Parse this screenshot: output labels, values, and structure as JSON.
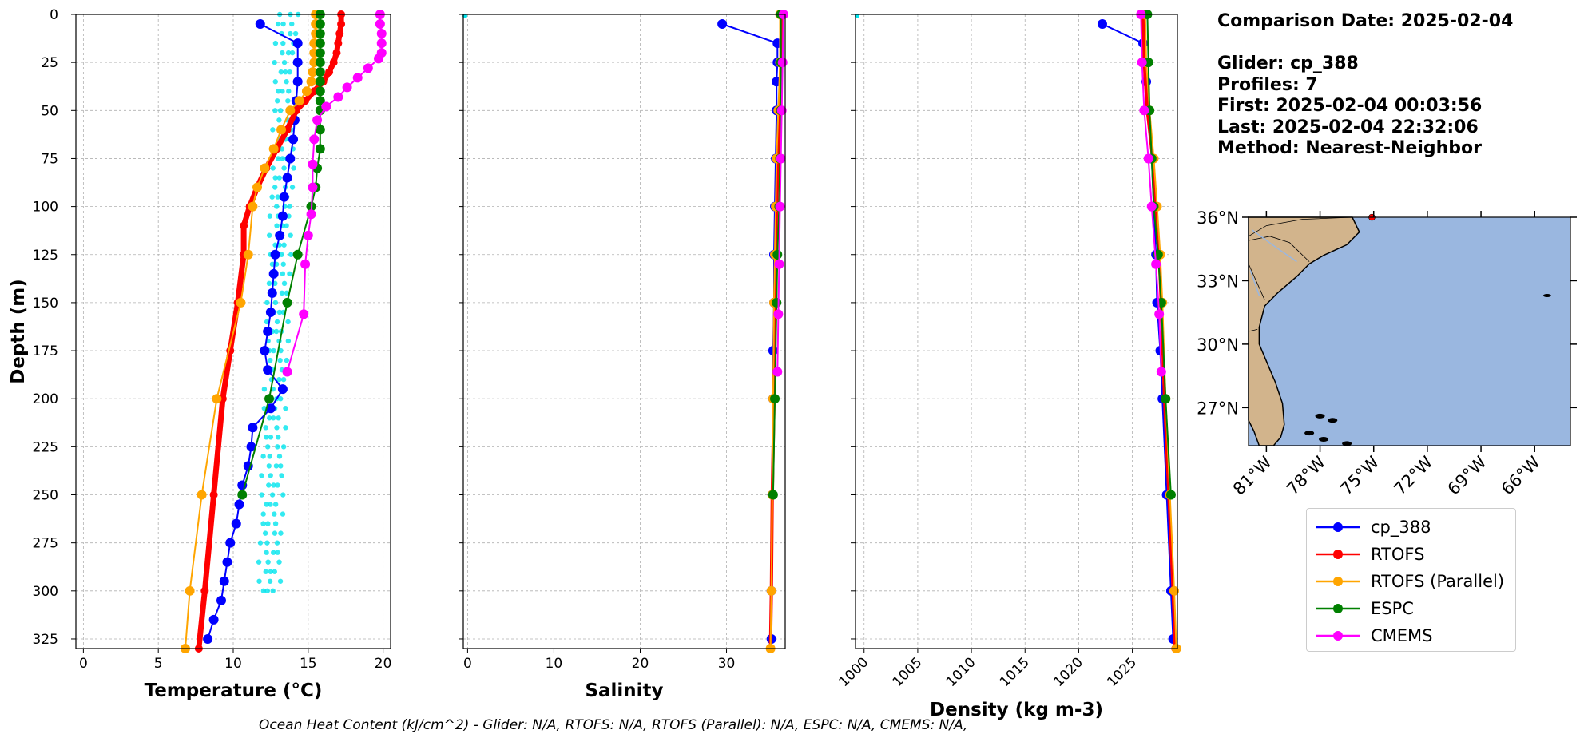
{
  "info": {
    "comparison_date": "Comparison Date: 2025-02-04",
    "glider": "Glider: cp_388",
    "profiles": "Profiles: 7",
    "first": "First: 2025-02-04 00:03:56",
    "last": "Last: 2025-02-04 22:32:06",
    "method": "Method: Nearest-Neighbor"
  },
  "footer": {
    "text": "Ocean Heat Content (kJ/cm^2) - Glider: N/A,  RTOFS: N/A,  RTOFS (Parallel): N/A,  ESPC: N/A,  CMEMS: N/A,"
  },
  "legend": [
    {
      "name": "cp_388",
      "color": "#0000ff"
    },
    {
      "name": "RTOFS",
      "color": "#ff0000"
    },
    {
      "name": "RTOFS (Parallel)",
      "color": "#ffa500"
    },
    {
      "name": "ESPC",
      "color": "#008000"
    },
    {
      "name": "CMEMS",
      "color": "#ff00ff"
    }
  ],
  "colors": {
    "glider": "#0000ff",
    "rtofs": "#ff0000",
    "rtofs_parallel": "#ffa500",
    "espc": "#008000",
    "cmems": "#ff00ff",
    "glider_casts": "#00e5ee",
    "land": "#d2b48c",
    "ocean": "#9ab7e0"
  },
  "chart_data": [
    {
      "type": "line",
      "xlabel": "Temperature (°C)",
      "ylabel": "Depth (m)",
      "xlim": [
        -0.5,
        20.5
      ],
      "ylim": [
        330,
        0
      ],
      "xticks": [
        0,
        5,
        10,
        15,
        20
      ],
      "yticks": [
        0,
        25,
        50,
        75,
        100,
        125,
        150,
        175,
        200,
        225,
        250,
        275,
        300,
        325
      ],
      "grid": true,
      "series": [
        {
          "name": "cp_388",
          "depth": [
            5,
            15,
            25,
            35,
            45,
            55,
            65,
            75,
            85,
            95,
            105,
            115,
            125,
            135,
            145,
            155,
            165,
            175,
            185,
            195,
            205,
            215,
            225,
            235,
            245,
            255,
            265,
            275,
            285,
            295,
            305,
            315,
            325
          ],
          "values": [
            11.8,
            14.3,
            14.3,
            14.3,
            14.2,
            14.1,
            14.0,
            13.8,
            13.6,
            13.4,
            13.3,
            13.1,
            12.8,
            12.7,
            12.6,
            12.5,
            12.3,
            12.1,
            12.3,
            13.3,
            12.5,
            11.3,
            11.2,
            11.0,
            10.6,
            10.4,
            10.2,
            9.8,
            9.6,
            9.4,
            9.2,
            8.7,
            8.3
          ]
        },
        {
          "name": "RTOFS",
          "depth": [
            0,
            5,
            10,
            15,
            20,
            25,
            30,
            35,
            40,
            45,
            50,
            60,
            70,
            80,
            90,
            100,
            110,
            125,
            150,
            175,
            200,
            250,
            300,
            330
          ],
          "values": [
            17.2,
            17.2,
            17.1,
            17.0,
            16.9,
            16.7,
            16.4,
            16.0,
            15.4,
            14.8,
            14.2,
            13.6,
            12.9,
            12.2,
            11.6,
            11.1,
            10.7,
            10.7,
            10.3,
            9.8,
            9.3,
            8.7,
            8.1,
            7.7
          ]
        },
        {
          "name": "RTOFS (Parallel)",
          "depth": [
            0,
            5,
            10,
            15,
            20,
            25,
            30,
            35,
            40,
            45,
            50,
            60,
            70,
            80,
            90,
            100,
            125,
            150,
            200,
            250,
            300,
            330
          ],
          "values": [
            15.5,
            15.5,
            15.5,
            15.4,
            15.4,
            15.4,
            15.3,
            15.2,
            14.9,
            14.4,
            13.8,
            13.2,
            12.7,
            12.1,
            11.6,
            11.3,
            11.0,
            10.5,
            8.9,
            7.9,
            7.1,
            6.8
          ]
        },
        {
          "name": "ESPC",
          "depth": [
            0,
            5,
            10,
            15,
            20,
            25,
            30,
            35,
            40,
            45,
            50,
            60,
            70,
            80,
            90,
            100,
            125,
            150,
            200,
            250
          ],
          "values": [
            15.8,
            15.8,
            15.8,
            15.8,
            15.8,
            15.8,
            15.8,
            15.8,
            15.8,
            15.8,
            15.8,
            15.8,
            15.8,
            15.6,
            15.5,
            15.2,
            14.3,
            13.6,
            12.4,
            10.6
          ]
        },
        {
          "name": "CMEMS",
          "depth": [
            0,
            5,
            10,
            15,
            20,
            23,
            28,
            33,
            38,
            43,
            48,
            55,
            65,
            78,
            90,
            104,
            115,
            130,
            156,
            186
          ],
          "values": [
            19.8,
            19.8,
            19.9,
            19.9,
            19.9,
            19.7,
            19.0,
            18.3,
            17.6,
            17.0,
            16.2,
            15.6,
            15.4,
            15.3,
            15.3,
            15.2,
            15.0,
            14.8,
            14.7,
            13.6
          ]
        }
      ]
    },
    {
      "type": "line",
      "xlabel": "Salinity",
      "xlim": [
        -0.5,
        36.8
      ],
      "ylim": [
        330,
        0
      ],
      "xticks": [
        0,
        10,
        20,
        30
      ],
      "grid": true,
      "series": [
        {
          "name": "cp_388",
          "depth": [
            5,
            15,
            25,
            35,
            50,
            75,
            100,
            125,
            150,
            175,
            200,
            250,
            300,
            325
          ],
          "values": [
            29.5,
            35.9,
            35.9,
            35.8,
            35.8,
            35.7,
            35.6,
            35.5,
            35.5,
            35.4,
            35.4,
            35.3,
            35.2,
            35.2
          ]
        },
        {
          "name": "RTOFS",
          "depth": [
            0,
            25,
            50,
            75,
            100,
            125,
            150,
            200,
            250,
            300,
            330
          ],
          "values": [
            36.4,
            36.3,
            36.2,
            36.0,
            35.8,
            35.7,
            35.6,
            35.5,
            35.3,
            35.2,
            35.1
          ]
        },
        {
          "name": "RTOFS (Parallel)",
          "depth": [
            0,
            25,
            50,
            75,
            100,
            125,
            150,
            200,
            250,
            300,
            330
          ],
          "values": [
            36.2,
            36.2,
            36.0,
            35.8,
            35.7,
            35.6,
            35.5,
            35.4,
            35.3,
            35.2,
            35.1
          ]
        },
        {
          "name": "ESPC",
          "depth": [
            0,
            25,
            50,
            75,
            100,
            125,
            150,
            200,
            250
          ],
          "values": [
            36.3,
            36.3,
            36.3,
            36.2,
            36.1,
            35.9,
            35.8,
            35.6,
            35.4
          ]
        },
        {
          "name": "CMEMS",
          "depth": [
            0,
            25,
            50,
            75,
            100,
            130,
            156,
            186
          ],
          "values": [
            36.6,
            36.5,
            36.4,
            36.3,
            36.2,
            36.1,
            36.0,
            35.9
          ]
        }
      ]
    },
    {
      "type": "line",
      "xlabel": "Density (kg m-3)",
      "xlim": [
        999.2,
        1029.2
      ],
      "ylim": [
        330,
        0
      ],
      "xticks": [
        1000,
        1005,
        1010,
        1015,
        1020,
        1025
      ],
      "grid": true,
      "series": [
        {
          "name": "cp_388",
          "depth": [
            5,
            15,
            25,
            35,
            50,
            75,
            100,
            125,
            150,
            175,
            200,
            250,
            300,
            325
          ],
          "values": [
            1022.2,
            1026.0,
            1026.1,
            1026.3,
            1026.5,
            1026.8,
            1027.0,
            1027.2,
            1027.3,
            1027.6,
            1027.8,
            1028.2,
            1028.6,
            1028.8
          ]
        },
        {
          "name": "RTOFS",
          "depth": [
            0,
            25,
            50,
            75,
            100,
            125,
            150,
            200,
            250,
            300,
            330
          ],
          "values": [
            1026.0,
            1026.1,
            1026.4,
            1026.9,
            1027.2,
            1027.5,
            1027.7,
            1028.0,
            1028.4,
            1028.8,
            1029.0
          ]
        },
        {
          "name": "RTOFS (Parallel)",
          "depth": [
            0,
            25,
            50,
            75,
            100,
            125,
            150,
            200,
            250,
            300,
            330
          ],
          "values": [
            1026.2,
            1026.3,
            1026.6,
            1027.0,
            1027.3,
            1027.6,
            1027.8,
            1028.1,
            1028.5,
            1028.9,
            1029.1
          ]
        },
        {
          "name": "ESPC",
          "depth": [
            0,
            25,
            50,
            75,
            100,
            125,
            150,
            200,
            250
          ],
          "values": [
            1026.4,
            1026.5,
            1026.6,
            1026.8,
            1027.0,
            1027.4,
            1027.7,
            1028.1,
            1028.6
          ]
        },
        {
          "name": "CMEMS",
          "depth": [
            0,
            25,
            50,
            75,
            100,
            130,
            156,
            186
          ],
          "values": [
            1025.8,
            1025.9,
            1026.1,
            1026.5,
            1026.8,
            1027.2,
            1027.5,
            1027.7
          ]
        }
      ]
    }
  ],
  "map": {
    "lat_ticks": [
      "36°N",
      "33°N",
      "30°N",
      "27°N"
    ],
    "lon_ticks": [
      "81°W",
      "78°W",
      "75°W",
      "72°W",
      "69°W",
      "66°W"
    ],
    "lat_values": [
      36,
      33,
      30,
      27
    ],
    "lon_values": [
      -81,
      -78,
      -75,
      -72,
      -69,
      -66
    ],
    "extent": {
      "lon_min": -82.0,
      "lon_max": -64.0,
      "lat_min": 25.2,
      "lat_max": 36.0
    }
  }
}
